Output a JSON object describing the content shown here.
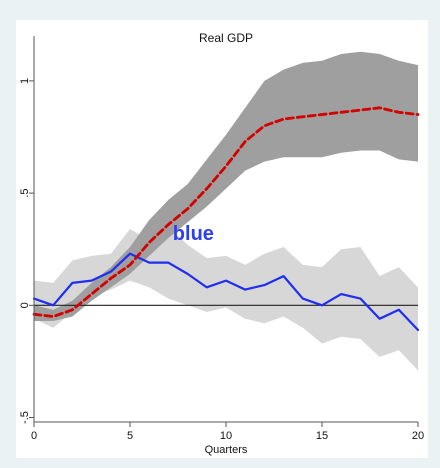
{
  "chart_data": {
    "type": "line",
    "title": "Real GDP",
    "xlabel": "Quarters",
    "ylabel": "",
    "annotation": "blue",
    "x": [
      0,
      1,
      2,
      3,
      4,
      5,
      6,
      7,
      8,
      9,
      10,
      11,
      12,
      13,
      14,
      15,
      16,
      17,
      18,
      19,
      20
    ],
    "xlim": [
      0,
      20
    ],
    "ylim": [
      -0.5,
      1.0
    ],
    "xticks": [
      {
        "value": 0,
        "label": "0"
      },
      {
        "value": 5,
        "label": "5"
      },
      {
        "value": 10,
        "label": "10"
      },
      {
        "value": 15,
        "label": "15"
      },
      {
        "value": 20,
        "label": "20"
      }
    ],
    "yticks": [
      {
        "value": -0.5,
        "label": "-.5"
      },
      {
        "value": 0,
        "label": "0"
      },
      {
        "value": 0.5,
        "label": ".5"
      },
      {
        "value": 1,
        "label": "1"
      }
    ],
    "zero_line": 0,
    "colors": {
      "background": "#eaf2f3",
      "plot_background": "#ffffff",
      "dark_band": "#9f9f9f",
      "light_band": "#d7d7d7",
      "red_series": "#d40000",
      "blue_series": "#1f2ef0",
      "zero_line": "#222222",
      "axis": "#555555",
      "annotation": "#2d3ff0"
    },
    "series": [
      {
        "values": [
          -0.04,
          -0.05,
          -0.02,
          0.05,
          0.12,
          0.18,
          0.28,
          0.36,
          0.43,
          0.52,
          0.62,
          0.73,
          0.8,
          0.83,
          0.84,
          0.85,
          0.86,
          0.87,
          0.88,
          0.86,
          0.85
        ],
        "band": {
          "lower": [
            -0.07,
            -0.07,
            -0.05,
            0.02,
            0.08,
            0.14,
            0.22,
            0.3,
            0.37,
            0.44,
            0.52,
            0.6,
            0.64,
            0.66,
            0.66,
            0.66,
            0.68,
            0.69,
            0.69,
            0.65,
            0.64
          ],
          "upper": [
            0.0,
            -0.02,
            0.02,
            0.1,
            0.17,
            0.26,
            0.38,
            0.47,
            0.54,
            0.65,
            0.76,
            0.88,
            1.0,
            1.05,
            1.08,
            1.09,
            1.12,
            1.13,
            1.12,
            1.09,
            1.07
          ]
        }
      },
      {
        "values": [
          0.03,
          0.0,
          0.1,
          0.11,
          0.15,
          0.23,
          0.19,
          0.19,
          0.14,
          0.08,
          0.11,
          0.07,
          0.09,
          0.13,
          0.03,
          0.0,
          0.05,
          0.03,
          -0.06,
          -0.02,
          -0.11
        ],
        "band": {
          "lower": [
            -0.06,
            -0.1,
            -0.03,
            0.04,
            0.07,
            0.11,
            0.08,
            0.03,
            0.0,
            -0.03,
            -0.01,
            -0.06,
            -0.08,
            -0.05,
            -0.1,
            -0.17,
            -0.14,
            -0.15,
            -0.23,
            -0.2,
            -0.29
          ],
          "upper": [
            0.11,
            0.1,
            0.2,
            0.22,
            0.23,
            0.34,
            0.29,
            0.35,
            0.27,
            0.21,
            0.22,
            0.18,
            0.23,
            0.26,
            0.18,
            0.17,
            0.25,
            0.26,
            0.13,
            0.17,
            0.08
          ]
        }
      }
    ]
  }
}
